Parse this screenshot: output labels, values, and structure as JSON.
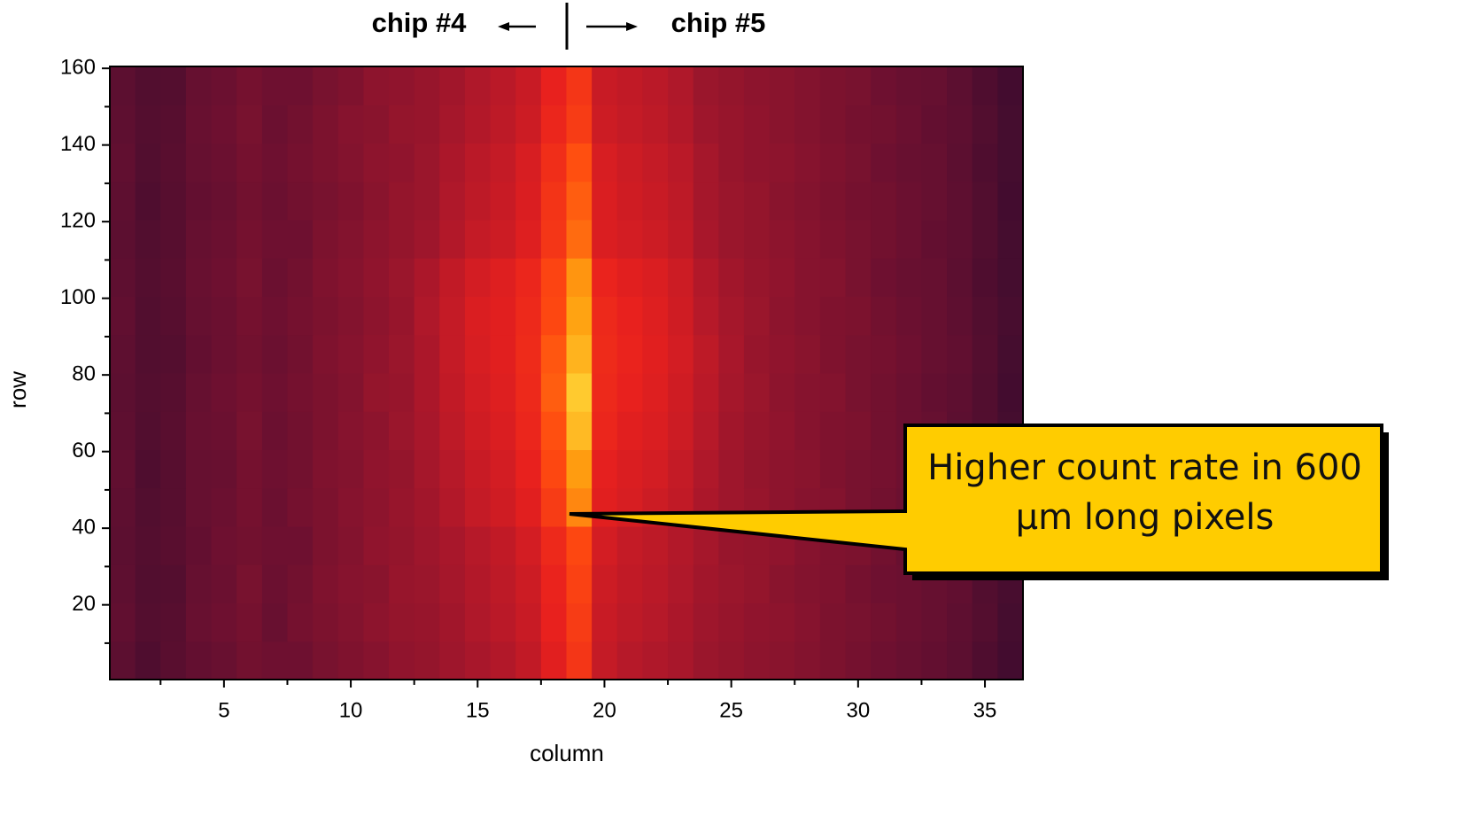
{
  "chart_data": {
    "type": "heatmap",
    "x_label": "column",
    "y_label": "row",
    "annotations": {
      "left": "chip #4",
      "right": "chip #5",
      "callout": "Higher count rate in 600 μm long pixels"
    },
    "x": [
      1,
      2,
      3,
      4,
      5,
      6,
      7,
      8,
      9,
      10,
      11,
      12,
      13,
      14,
      15,
      16,
      17,
      18,
      19,
      20,
      21,
      22,
      23,
      24,
      25,
      26,
      27,
      28,
      29,
      30,
      31,
      32,
      33,
      34,
      35,
      36
    ],
    "ybins": [
      0.5,
      10.5,
      20.5,
      30.5,
      40.5,
      50.5,
      60.5,
      70.5,
      80.5,
      90.5,
      100.5,
      110.5,
      120.5,
      130.5,
      140.5,
      150.5,
      160.5
    ],
    "xlim": [
      0.5,
      36.5
    ],
    "ylim": [
      0.5,
      160.5
    ],
    "xticks": [
      5,
      10,
      15,
      20,
      25,
      30,
      35
    ],
    "xminorticks": [
      2.5,
      7.5,
      12.5,
      17.5,
      22.5,
      27.5,
      32.5
    ],
    "yticks": [
      20,
      40,
      60,
      80,
      100,
      120,
      140,
      160
    ],
    "yminorticks": [
      10,
      30,
      50,
      70,
      90,
      110,
      130,
      150
    ],
    "z": [
      [
        24,
        19,
        23,
        27,
        29,
        32,
        31,
        31,
        34,
        36,
        38,
        41,
        42,
        45,
        48,
        51,
        55,
        64,
        74,
        56,
        52,
        50,
        48,
        44,
        42,
        40,
        39,
        37,
        35,
        33,
        31,
        29,
        27,
        24,
        19,
        14
      ],
      [
        26,
        21,
        22,
        29,
        31,
        33,
        29,
        33,
        35,
        37,
        40,
        42,
        43,
        46,
        50,
        53,
        57,
        66,
        76,
        57,
        54,
        52,
        49,
        45,
        43,
        41,
        40,
        38,
        35,
        34,
        32,
        30,
        28,
        25,
        21,
        15
      ],
      [
        25,
        20,
        21,
        28,
        30,
        34,
        30,
        32,
        36,
        38,
        39,
        43,
        44,
        47,
        51,
        54,
        58,
        67,
        78,
        58,
        55,
        53,
        50,
        46,
        44,
        42,
        39,
        37,
        36,
        33,
        31,
        30,
        28,
        26,
        20,
        16
      ],
      [
        24,
        21,
        23,
        27,
        31,
        32,
        31,
        31,
        35,
        37,
        41,
        42,
        45,
        48,
        52,
        55,
        60,
        69,
        80,
        60,
        56,
        54,
        51,
        47,
        43,
        42,
        41,
        38,
        36,
        35,
        32,
        29,
        27,
        25,
        19,
        15
      ],
      [
        25,
        20,
        22,
        28,
        30,
        33,
        30,
        33,
        35,
        38,
        40,
        43,
        46,
        51,
        56,
        59,
        64,
        76,
        90,
        64,
        61,
        58,
        55,
        49,
        45,
        43,
        40,
        38,
        37,
        34,
        32,
        30,
        28,
        25,
        20,
        15
      ],
      [
        26,
        19,
        22,
        28,
        29,
        33,
        31,
        32,
        36,
        37,
        41,
        42,
        47,
        52,
        57,
        60,
        66,
        80,
        93,
        65,
        62,
        60,
        56,
        50,
        45,
        42,
        40,
        39,
        36,
        34,
        33,
        31,
        29,
        25,
        21,
        16
      ],
      [
        25,
        20,
        23,
        29,
        30,
        34,
        30,
        32,
        35,
        38,
        40,
        44,
        48,
        54,
        59,
        62,
        68,
        82,
        97,
        68,
        64,
        62,
        58,
        52,
        46,
        43,
        41,
        38,
        36,
        35,
        32,
        30,
        28,
        24,
        20,
        15
      ],
      [
        24,
        21,
        22,
        28,
        31,
        33,
        31,
        33,
        35,
        37,
        42,
        43,
        49,
        55,
        60,
        63,
        69,
        84,
        99,
        69,
        66,
        63,
        59,
        53,
        47,
        44,
        40,
        38,
        37,
        34,
        32,
        30,
        27,
        25,
        20,
        14
      ],
      [
        25,
        20,
        21,
        27,
        30,
        32,
        30,
        32,
        36,
        38,
        41,
        44,
        49,
        56,
        61,
        64,
        70,
        83,
        96,
        70,
        67,
        64,
        60,
        54,
        48,
        43,
        41,
        39,
        36,
        34,
        33,
        31,
        28,
        26,
        21,
        15
      ],
      [
        26,
        20,
        22,
        28,
        30,
        33,
        31,
        33,
        35,
        37,
        40,
        43,
        50,
        56,
        62,
        64,
        69,
        80,
        94,
        69,
        66,
        63,
        59,
        52,
        47,
        44,
        40,
        38,
        36,
        35,
        32,
        30,
        28,
        25,
        20,
        16
      ],
      [
        25,
        21,
        23,
        29,
        31,
        34,
        30,
        32,
        36,
        38,
        41,
        44,
        49,
        55,
        60,
        63,
        68,
        79,
        92,
        67,
        64,
        62,
        58,
        51,
        46,
        43,
        41,
        38,
        37,
        34,
        31,
        29,
        28,
        24,
        19,
        15
      ],
      [
        24,
        20,
        22,
        28,
        30,
        33,
        31,
        31,
        35,
        37,
        40,
        42,
        45,
        51,
        56,
        58,
        63,
        74,
        86,
        62,
        60,
        58,
        55,
        48,
        44,
        42,
        40,
        38,
        36,
        34,
        32,
        30,
        27,
        25,
        20,
        15
      ],
      [
        25,
        19,
        22,
        27,
        29,
        32,
        30,
        32,
        34,
        36,
        39,
        42,
        44,
        50,
        54,
        57,
        62,
        73,
        84,
        62,
        59,
        57,
        54,
        47,
        44,
        42,
        39,
        37,
        35,
        33,
        32,
        30,
        28,
        25,
        20,
        14
      ],
      [
        26,
        20,
        23,
        28,
        30,
        33,
        31,
        33,
        35,
        37,
        40,
        41,
        44,
        49,
        53,
        56,
        61,
        71,
        82,
        61,
        58,
        56,
        53,
        47,
        43,
        41,
        40,
        38,
        36,
        34,
        31,
        29,
        28,
        24,
        19,
        15
      ],
      [
        25,
        21,
        22,
        29,
        31,
        34,
        30,
        32,
        35,
        38,
        39,
        42,
        43,
        47,
        51,
        54,
        58,
        68,
        76,
        58,
        56,
        54,
        51,
        45,
        43,
        41,
        39,
        37,
        35,
        33,
        32,
        30,
        27,
        25,
        20,
        15
      ],
      [
        24,
        20,
        21,
        28,
        30,
        33,
        31,
        31,
        34,
        36,
        40,
        41,
        43,
        46,
        50,
        53,
        57,
        66,
        74,
        57,
        55,
        53,
        50,
        44,
        42,
        40,
        39,
        37,
        35,
        34,
        31,
        29,
        28,
        24,
        19,
        14
      ]
    ]
  }
}
